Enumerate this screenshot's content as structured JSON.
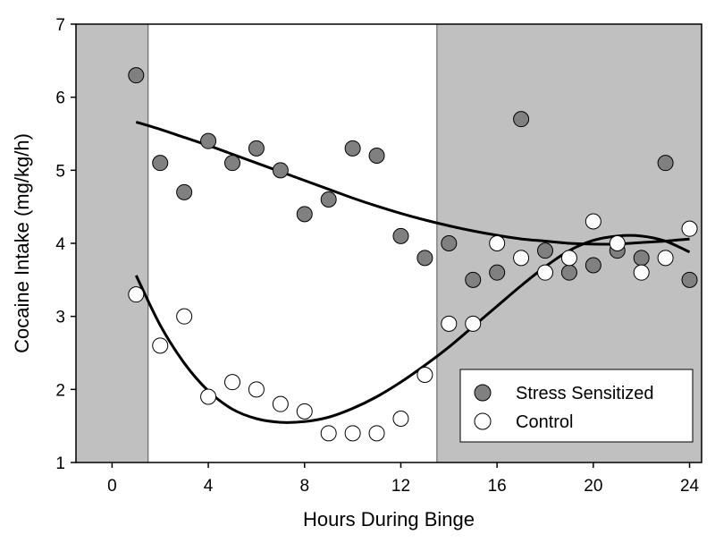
{
  "chart_data": {
    "type": "scatter",
    "title": "",
    "xlabel": "Hours During Binge",
    "ylabel": "Cocaine Intake (mg/kg/h)",
    "xlim": [
      -1.5,
      24.5
    ],
    "ylim": [
      1,
      7
    ],
    "xticks": [
      0,
      4,
      8,
      12,
      16,
      20,
      24
    ],
    "yticks": [
      1,
      2,
      3,
      4,
      5,
      6,
      7
    ],
    "shaded_x_ranges": [
      [
        -1.5,
        1.5
      ],
      [
        13.5,
        24.5
      ]
    ],
    "shade_color": "#c0c0c0",
    "legend_position": "bottom-right",
    "series": [
      {
        "name": "Stress Sensitized",
        "marker_fill": "#808080",
        "x": [
          1,
          2,
          3,
          4,
          5,
          6,
          7,
          8,
          9,
          10,
          11,
          12,
          13,
          14,
          15,
          16,
          17,
          18,
          19,
          20,
          21,
          22,
          23,
          24
        ],
        "values": [
          6.3,
          5.1,
          4.7,
          5.4,
          5.1,
          5.3,
          5.0,
          4.4,
          4.6,
          5.3,
          5.2,
          4.1,
          3.8,
          4.0,
          3.5,
          3.6,
          5.7,
          3.9,
          3.6,
          3.7,
          3.9,
          3.8,
          5.1,
          3.5
        ],
        "fit_curve": {
          "x": [
            1,
            2,
            3,
            4,
            5,
            6,
            7,
            8,
            9,
            10,
            11,
            12,
            13,
            14,
            15,
            16,
            17,
            18,
            19,
            20,
            21,
            22,
            23,
            24
          ],
          "y": [
            5.66,
            5.56,
            5.45,
            5.34,
            5.22,
            5.1,
            4.98,
            4.86,
            4.74,
            4.62,
            4.51,
            4.41,
            4.32,
            4.24,
            4.17,
            4.11,
            4.06,
            4.03,
            4.0,
            3.99,
            3.99,
            4.01,
            4.03,
            4.06
          ]
        }
      },
      {
        "name": "Control",
        "marker_fill": "#ffffff",
        "x": [
          1,
          2,
          3,
          4,
          5,
          6,
          7,
          8,
          9,
          10,
          11,
          12,
          13,
          14,
          15,
          16,
          17,
          18,
          19,
          20,
          21,
          22,
          23,
          24
        ],
        "values": [
          3.3,
          2.6,
          3.0,
          1.9,
          2.1,
          2.0,
          1.8,
          1.7,
          1.4,
          1.4,
          1.4,
          1.6,
          2.2,
          2.9,
          2.9,
          4.0,
          3.8,
          3.6,
          3.8,
          4.3,
          4.0,
          3.6,
          3.8,
          4.2
        ],
        "fit_curve": {
          "x": [
            1,
            2,
            3,
            4,
            5,
            6,
            7,
            8,
            9,
            10,
            11,
            12,
            13,
            14,
            15,
            16,
            17,
            18,
            19,
            20,
            21,
            22,
            23,
            24
          ],
          "y": [
            3.56,
            2.88,
            2.36,
            1.98,
            1.73,
            1.6,
            1.55,
            1.56,
            1.62,
            1.74,
            1.9,
            2.1,
            2.33,
            2.58,
            2.86,
            3.14,
            3.42,
            3.68,
            3.9,
            4.04,
            4.1,
            4.1,
            4.03,
            3.88
          ]
        }
      }
    ]
  }
}
